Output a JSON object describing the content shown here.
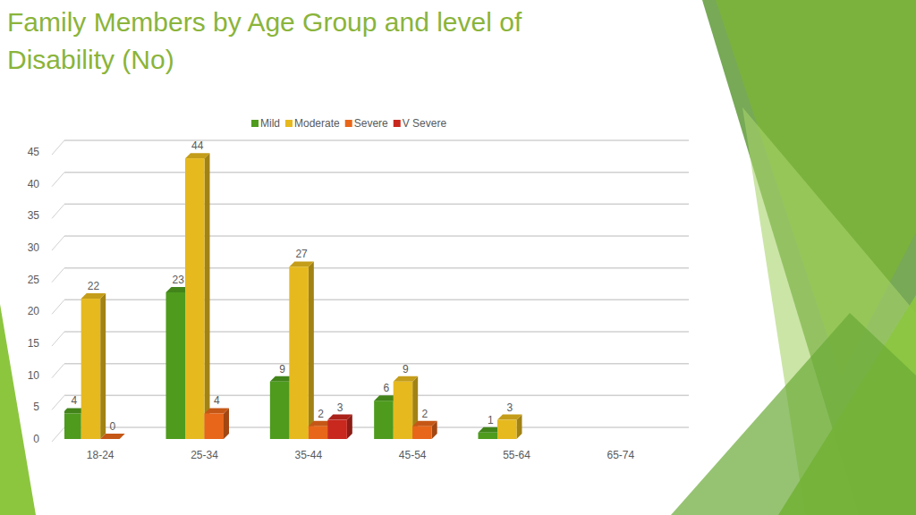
{
  "chart_data": {
    "type": "bar",
    "title": "Family Members by Age Group and level of Disability (No)",
    "categories": [
      "18-24",
      "25-34",
      "35-44",
      "45-54",
      "55-64",
      "65-74"
    ],
    "series": [
      {
        "name": "Mild",
        "color": "#4e9b1e",
        "values": [
          4,
          23,
          9,
          6,
          1,
          null
        ]
      },
      {
        "name": "Moderate",
        "color": "#e6b91e",
        "values": [
          22,
          44,
          27,
          9,
          3,
          null
        ]
      },
      {
        "name": "Severe",
        "color": "#e8661a",
        "values": [
          0,
          4,
          2,
          2,
          null,
          null
        ]
      },
      {
        "name": "V Severe",
        "color": "#c8281e",
        "values": [
          null,
          null,
          3,
          null,
          null,
          null
        ]
      }
    ],
    "ylim": [
      0,
      45
    ],
    "yticks": [
      0,
      5,
      10,
      15,
      20,
      25,
      30,
      35,
      40,
      45
    ],
    "grid": true,
    "legend": "top",
    "data_labels": true
  }
}
